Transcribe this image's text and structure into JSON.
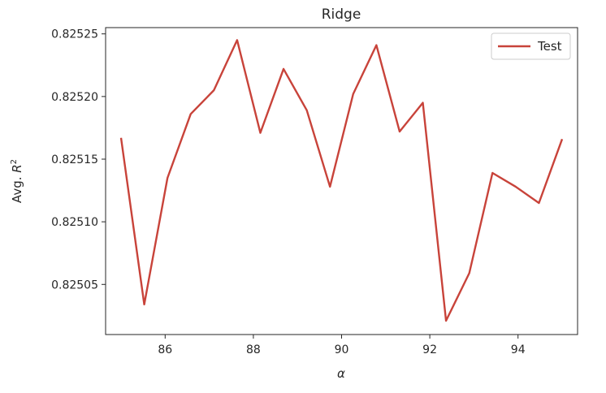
{
  "chart_data": {
    "type": "line",
    "title": "Ridge",
    "xlabel": "α",
    "ylabel_main": "Avg. ",
    "ylabel_var": "R",
    "ylabel_sup": "2",
    "xlim": [
      84.65,
      95.35
    ],
    "ylim": [
      0.82501,
      0.825255
    ],
    "xticks": [
      86,
      88,
      90,
      92,
      94
    ],
    "yticks": [
      0.82505,
      0.8251,
      0.82515,
      0.8252,
      0.82525
    ],
    "ytick_labels": [
      "0.82505",
      "0.82510",
      "0.82515",
      "0.82520",
      "0.82525"
    ],
    "grid": false,
    "legend_position": "top-right",
    "colors": {
      "line": "#c8433a",
      "axes": "#262626"
    },
    "series": [
      {
        "name": "Test",
        "x": [
          85.0,
          85.526,
          86.053,
          86.579,
          87.105,
          87.632,
          88.158,
          88.684,
          89.211,
          89.737,
          90.263,
          90.789,
          91.316,
          91.842,
          92.368,
          92.895,
          93.421,
          93.947,
          94.474,
          95.0
        ],
        "y": [
          0.825167,
          0.825034,
          0.825135,
          0.825186,
          0.825205,
          0.825245,
          0.825171,
          0.825222,
          0.825189,
          0.825128,
          0.825202,
          0.825241,
          0.825172,
          0.825195,
          0.825021,
          0.825059,
          0.825139,
          0.825128,
          0.825115,
          0.825166
        ]
      }
    ]
  }
}
